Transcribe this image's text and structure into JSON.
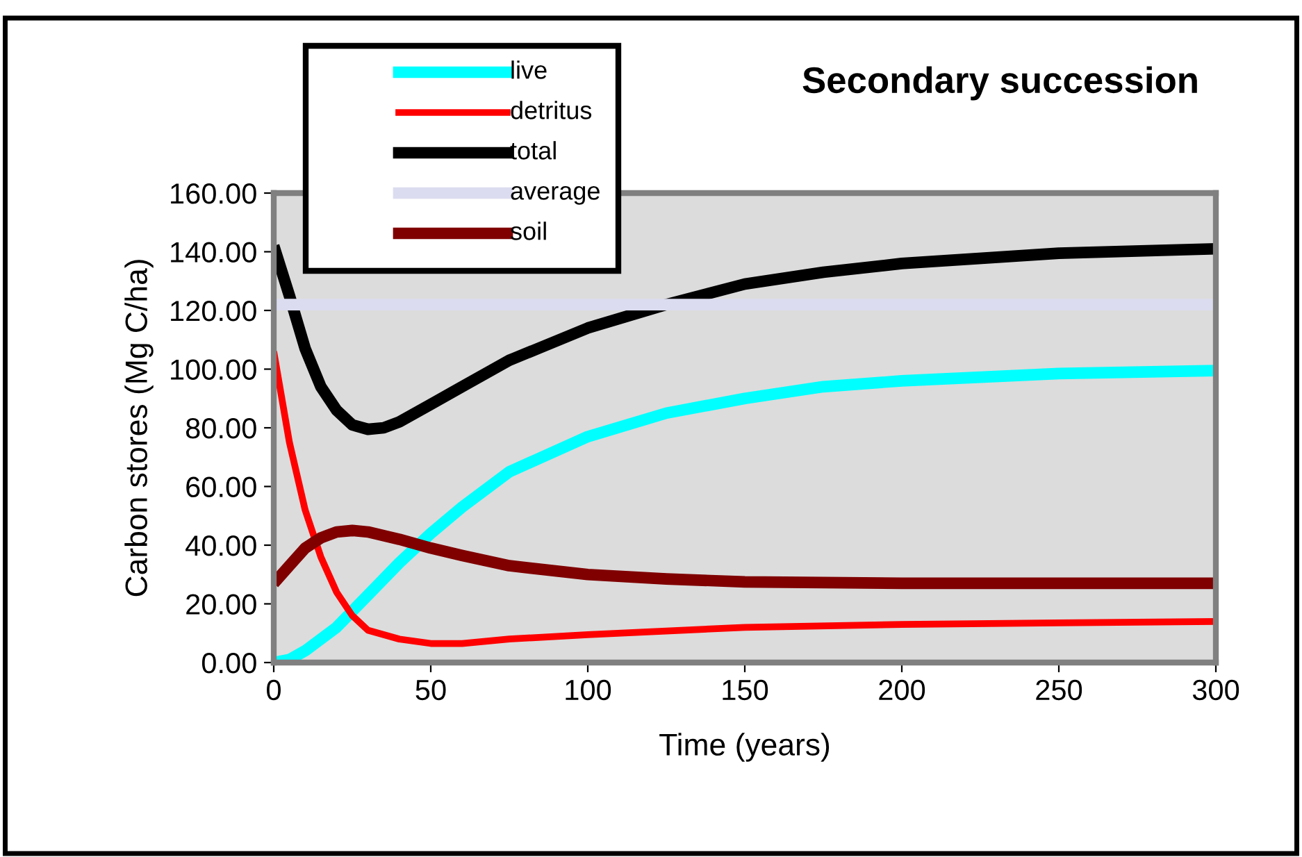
{
  "chart_data": {
    "type": "line",
    "title": "Secondary succession",
    "xlabel": "Time (years)",
    "ylabel": "Carbon stores (Mg C/ha)",
    "xlim": [
      0,
      300
    ],
    "xticks": [
      0,
      50,
      100,
      150,
      200,
      250,
      300
    ],
    "ylim": [
      0,
      160
    ],
    "yticks": [
      {
        "value": 0,
        "label": "0.00"
      },
      {
        "value": 20,
        "label": "20.00"
      },
      {
        "value": 40,
        "label": "40.00"
      },
      {
        "value": 60,
        "label": "60.00"
      },
      {
        "value": 80,
        "label": "80.00"
      },
      {
        "value": 100,
        "label": "100.00"
      },
      {
        "value": 120,
        "label": "120.00"
      },
      {
        "value": 140,
        "label": "140.00"
      },
      {
        "value": 160,
        "label": "160.00"
      }
    ],
    "grid": false,
    "legend": "top left",
    "marker": "none",
    "line_style": "solid",
    "series": [
      {
        "name": "live",
        "color": "#00ffff",
        "x": [
          0,
          5,
          10,
          20,
          30,
          40,
          50,
          60,
          75,
          100,
          125,
          150,
          175,
          200,
          250,
          300
        ],
        "values": [
          0,
          1,
          4,
          12,
          23,
          34,
          44,
          53,
          65,
          77,
          85,
          90,
          94,
          96,
          98.5,
          99.5
        ]
      },
      {
        "name": "detritus",
        "color": "#ff0000",
        "x": [
          0,
          5,
          10,
          15,
          20,
          25,
          30,
          40,
          50,
          60,
          75,
          100,
          150,
          200,
          250,
          300
        ],
        "values": [
          106,
          75,
          52,
          36,
          24,
          16,
          11,
          8,
          6.5,
          6.5,
          8,
          9.5,
          12,
          13,
          13.5,
          14
        ]
      },
      {
        "name": "total",
        "color": "#000000",
        "x": [
          0,
          5,
          10,
          15,
          20,
          25,
          30,
          35,
          40,
          50,
          60,
          75,
          100,
          125,
          150,
          175,
          200,
          250,
          300
        ],
        "values": [
          142,
          125,
          107,
          94,
          86,
          81,
          79.5,
          80,
          82,
          88,
          94,
          103,
          114,
          122,
          129,
          133,
          136,
          139.5,
          141
        ]
      },
      {
        "name": "average",
        "color": "#dcdcf0",
        "x": [
          0,
          300
        ],
        "values": [
          122,
          122
        ]
      },
      {
        "name": "soil",
        "color": "#800000",
        "x": [
          0,
          5,
          10,
          15,
          20,
          25,
          30,
          40,
          50,
          60,
          75,
          100,
          125,
          150,
          200,
          250,
          300
        ],
        "values": [
          27,
          33,
          39,
          42.5,
          44.5,
          45,
          44.5,
          42,
          39,
          36.5,
          33,
          30,
          28.5,
          27.5,
          27,
          27,
          27
        ]
      }
    ]
  }
}
